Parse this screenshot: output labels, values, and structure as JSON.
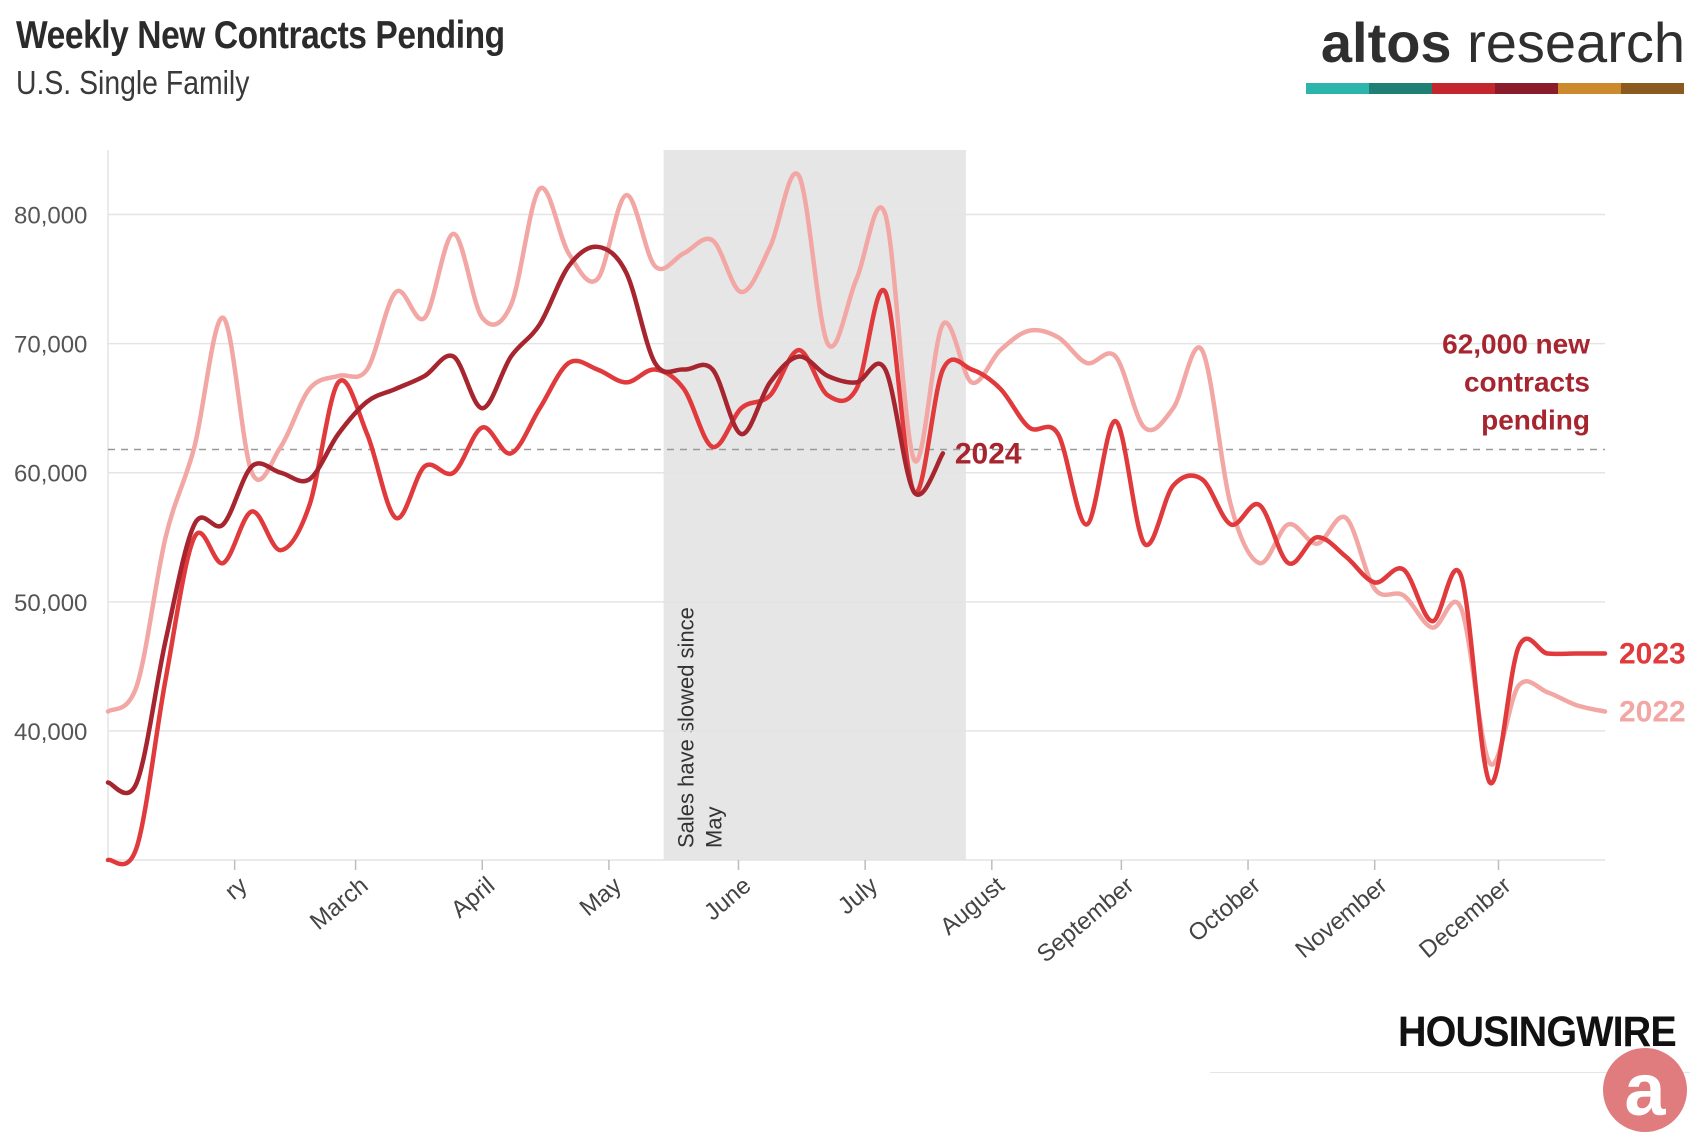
{
  "header": {
    "title": "Weekly New Contracts Pending",
    "subtitle": "U.S. Single Family"
  },
  "brand": {
    "name_bold": "altos",
    "name_light": " research",
    "bar_colors": [
      "#2bb5ad",
      "#1f7f75",
      "#c2272d",
      "#8b1a2b",
      "#cc8a2c",
      "#8a5a1f"
    ]
  },
  "footer": {
    "logo_text": "HOUSINGWIRE",
    "badge_letter": "a"
  },
  "chart_data": {
    "type": "line",
    "title": "Weekly New Contracts Pending",
    "subtitle": "U.S. Single Family",
    "x_unit": "week of year",
    "xlim": [
      1,
      53
    ],
    "ylim": [
      30000,
      85000
    ],
    "yticks": [
      {
        "value": 40000,
        "label": "40,000"
      },
      {
        "value": 50000,
        "label": "50,000"
      },
      {
        "value": 60000,
        "label": "60,000"
      },
      {
        "value": 70000,
        "label": "70,000"
      },
      {
        "value": 80000,
        "label": "80,000"
      }
    ],
    "xticks": [
      {
        "week": 5.4,
        "label": "ry"
      },
      {
        "week": 9.6,
        "label": "March"
      },
      {
        "week": 14.0,
        "label": "April"
      },
      {
        "week": 18.4,
        "label": "May"
      },
      {
        "week": 22.9,
        "label": "June"
      },
      {
        "week": 27.3,
        "label": "July"
      },
      {
        "week": 31.7,
        "label": "August"
      },
      {
        "week": 36.2,
        "label": "September"
      },
      {
        "week": 40.6,
        "label": "October"
      },
      {
        "week": 45.0,
        "label": "November"
      },
      {
        "week": 49.3,
        "label": "December"
      }
    ],
    "grid": true,
    "reference_line": {
      "value": 61800,
      "label_lines": [
        "62,000 new",
        "contracts",
        "pending"
      ]
    },
    "shaded_region": {
      "x_start": 20.3,
      "x_end": 30.8,
      "label_lines": [
        "Sales have slowed since",
        "May"
      ]
    },
    "series": [
      {
        "name": "2022",
        "color": "#f2a7a4",
        "x": [
          1,
          2,
          3,
          4,
          5,
          6,
          7,
          8,
          9,
          10,
          11,
          12,
          13,
          14,
          15,
          16,
          17,
          18,
          19,
          20,
          21,
          22,
          23,
          24,
          25,
          26,
          27,
          28,
          29,
          30,
          31,
          32,
          33,
          34,
          35,
          36,
          37,
          38,
          39,
          40,
          41,
          42,
          43,
          44,
          45,
          46,
          47,
          48,
          49,
          50,
          51,
          52,
          53
        ],
        "values": [
          41500,
          43500,
          55000,
          62000,
          72000,
          60000,
          62000,
          66500,
          67500,
          68000,
          74000,
          72000,
          78500,
          72000,
          73000,
          82000,
          77000,
          75000,
          81500,
          76000,
          77000,
          78000,
          74000,
          77500,
          83000,
          70000,
          75000,
          80000,
          61000,
          71500,
          67000,
          69500,
          71000,
          70500,
          68500,
          69000,
          63500,
          65000,
          69500,
          57500,
          53000,
          56000,
          54500,
          56500,
          51000,
          50500,
          48000,
          49500,
          37500,
          43500,
          43000,
          42000,
          41500
        ]
      },
      {
        "name": "2023",
        "color": "#e03a3c",
        "x": [
          1,
          2,
          3,
          4,
          5,
          6,
          7,
          8,
          9,
          10,
          11,
          12,
          13,
          14,
          15,
          16,
          17,
          18,
          19,
          20,
          21,
          22,
          23,
          24,
          25,
          26,
          27,
          28,
          29,
          30,
          31,
          32,
          33,
          34,
          35,
          36,
          37,
          38,
          39,
          40,
          41,
          42,
          43,
          44,
          45,
          46,
          47,
          48,
          49,
          50,
          51,
          52,
          53
        ],
        "values": [
          30000,
          31000,
          44000,
          55000,
          53000,
          57000,
          54000,
          57500,
          67000,
          63000,
          56500,
          60500,
          60000,
          63500,
          61500,
          65000,
          68500,
          68000,
          67000,
          68000,
          66500,
          62000,
          65000,
          66000,
          69500,
          66000,
          66500,
          74000,
          58500,
          68000,
          68000,
          66500,
          63500,
          63000,
          56000,
          64000,
          54500,
          59000,
          59500,
          56000,
          57500,
          53000,
          55000,
          53500,
          51500,
          52500,
          48500,
          52000,
          36000,
          46500,
          46000,
          46000,
          46000
        ]
      },
      {
        "name": "2024",
        "color": "#a6252f",
        "x": [
          1,
          2,
          3,
          4,
          5,
          6,
          7,
          8,
          9,
          10,
          11,
          12,
          13,
          14,
          15,
          16,
          17,
          18,
          19,
          20,
          21,
          22,
          23,
          24,
          25,
          26,
          27,
          28,
          29,
          30
        ],
        "values": [
          36000,
          36000,
          47000,
          56000,
          56000,
          60500,
          60000,
          59500,
          63000,
          65500,
          66500,
          67500,
          69000,
          65000,
          69000,
          71500,
          76000,
          77500,
          75500,
          68500,
          68000,
          68000,
          63000,
          67000,
          69000,
          67500,
          67000,
          68000,
          58500,
          61500
        ]
      }
    ]
  }
}
